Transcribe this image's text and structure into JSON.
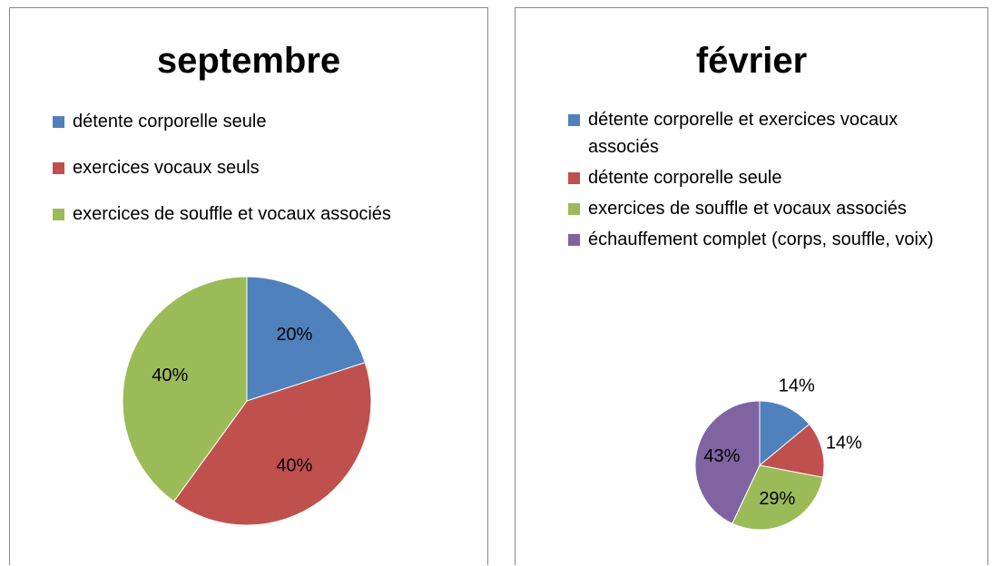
{
  "chart_data": [
    {
      "type": "pie",
      "title": "septembre",
      "categories": [
        "détente corporelle seule",
        "exercices vocaux seuls",
        "exercices de souffle et vocaux associés"
      ],
      "values": [
        20,
        40,
        40
      ],
      "value_labels": [
        "20%",
        "40%",
        "40%"
      ],
      "colors": [
        "#4f81bd",
        "#c0504d",
        "#9bbb59"
      ],
      "legend": "top"
    },
    {
      "type": "pie",
      "title": "février",
      "categories": [
        "détente corporelle et exercices vocaux associés",
        "détente corporelle seule",
        "exercices de souffle et vocaux associés",
        "échauffement complet (corps, souffle, voix)"
      ],
      "values": [
        14,
        14,
        29,
        43
      ],
      "value_labels": [
        "14%",
        "14%",
        "29%",
        "43%"
      ],
      "colors": [
        "#4f81bd",
        "#c0504d",
        "#9bbb59",
        "#8064a2"
      ],
      "legend": "top"
    }
  ]
}
